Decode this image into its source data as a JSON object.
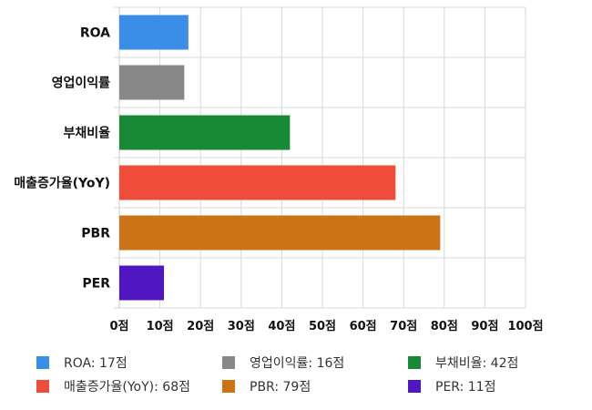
{
  "chart_data": {
    "type": "bar",
    "orientation": "horizontal",
    "categories": [
      "ROA",
      "영업이익률",
      "부채비율",
      "매출증가율(YoY)",
      "PBR",
      "PER"
    ],
    "values": [
      17,
      16,
      42,
      68,
      79,
      11
    ],
    "colors": [
      "#3b8ee8",
      "#888888",
      "#178a35",
      "#ef4d3a",
      "#cd7317",
      "#4f16c2"
    ],
    "xlim": [
      0,
      100
    ],
    "x_ticks": [
      0,
      10,
      20,
      30,
      40,
      50,
      60,
      70,
      80,
      90,
      100
    ],
    "x_tick_labels": [
      "0점",
      "10점",
      "20점",
      "30점",
      "40점",
      "50점",
      "60점",
      "70점",
      "80점",
      "90점",
      "100점"
    ],
    "grid": true,
    "legend_position": "bottom",
    "legend": [
      {
        "label": "ROA: 17점",
        "color": "#3b8ee8"
      },
      {
        "label": "영업이익률: 16점",
        "color": "#888888"
      },
      {
        "label": "부채비율: 42점",
        "color": "#178a35"
      },
      {
        "label": "매출증가율(YoY): 68점",
        "color": "#ef4d3a"
      },
      {
        "label": "PBR: 79점",
        "color": "#cd7317"
      },
      {
        "label": "PER: 11점",
        "color": "#4f16c2"
      }
    ]
  }
}
